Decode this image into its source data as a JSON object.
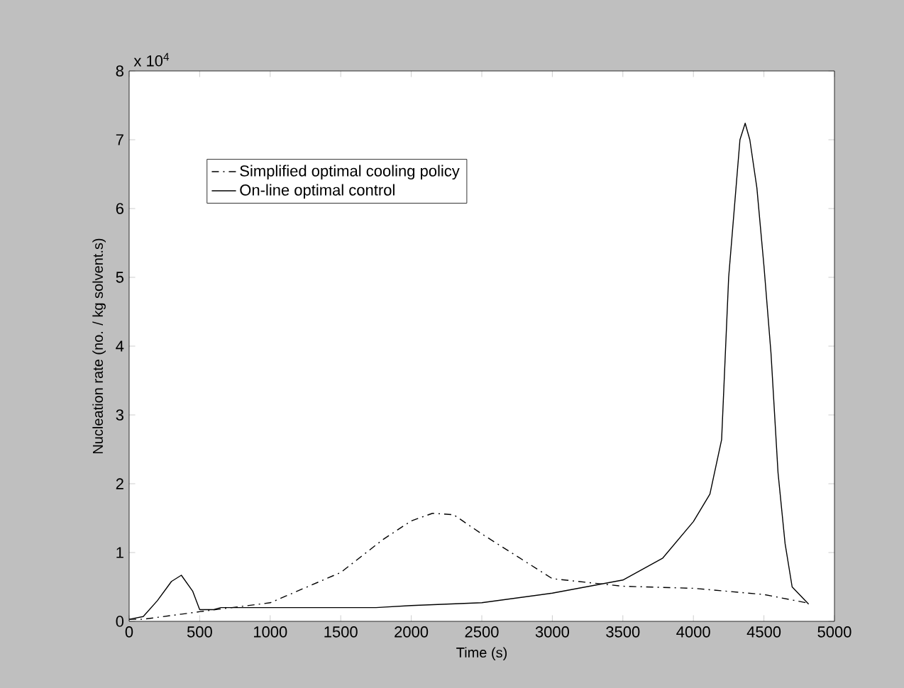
{
  "chart_data": {
    "type": "line",
    "xlabel": "Time (s)",
    "ylabel": "Nucleation rate (no. / kg solvent.s)",
    "annotations": [
      "x 10$^{4}$"
    ],
    "xlim": [
      0,
      5000
    ],
    "ylim": [
      0,
      8
    ],
    "xticks": [
      0,
      500,
      1000,
      1500,
      2000,
      2500,
      3000,
      3500,
      4000,
      4500,
      5000
    ],
    "yticks": [
      0,
      1,
      2,
      3,
      4,
      5,
      6,
      7,
      8
    ],
    "legend": "top left",
    "grid": false,
    "marker": "none",
    "series": [
      {
        "name": "Simplified optimal cooling policy",
        "color": "#000000",
        "line_style": "dashdot",
        "x": [
          0,
          100,
          500,
          1000,
          1500,
          1800,
          2000,
          2150,
          2300,
          2500,
          3000,
          3500,
          4000,
          4500,
          4800
        ],
        "values": [
          0.03,
          0.03,
          0.14,
          0.27,
          0.71,
          1.19,
          1.46,
          1.57,
          1.55,
          1.27,
          0.62,
          0.51,
          0.48,
          0.39,
          0.27
        ]
      },
      {
        "name": "On-line optimal control",
        "color": "#000000",
        "line_style": "solid",
        "x": [
          0,
          100,
          200,
          300,
          370,
          450,
          500,
          520,
          600,
          650,
          1000,
          1500,
          1750,
          2000,
          2500,
          3000,
          3500,
          3783,
          4000,
          4117,
          4200,
          4250,
          4330,
          4367,
          4400,
          4450,
          4500,
          4550,
          4600,
          4650,
          4700,
          4817
        ],
        "values": [
          0.03,
          0.07,
          0.3,
          0.58,
          0.67,
          0.44,
          0.17,
          0.17,
          0.17,
          0.2,
          0.2,
          0.2,
          0.2,
          0.23,
          0.27,
          0.41,
          0.6,
          0.92,
          1.45,
          1.85,
          2.64,
          5.0,
          7.0,
          7.24,
          7.0,
          6.3,
          5.17,
          3.9,
          2.16,
          1.13,
          0.5,
          0.25
        ]
      }
    ]
  }
}
